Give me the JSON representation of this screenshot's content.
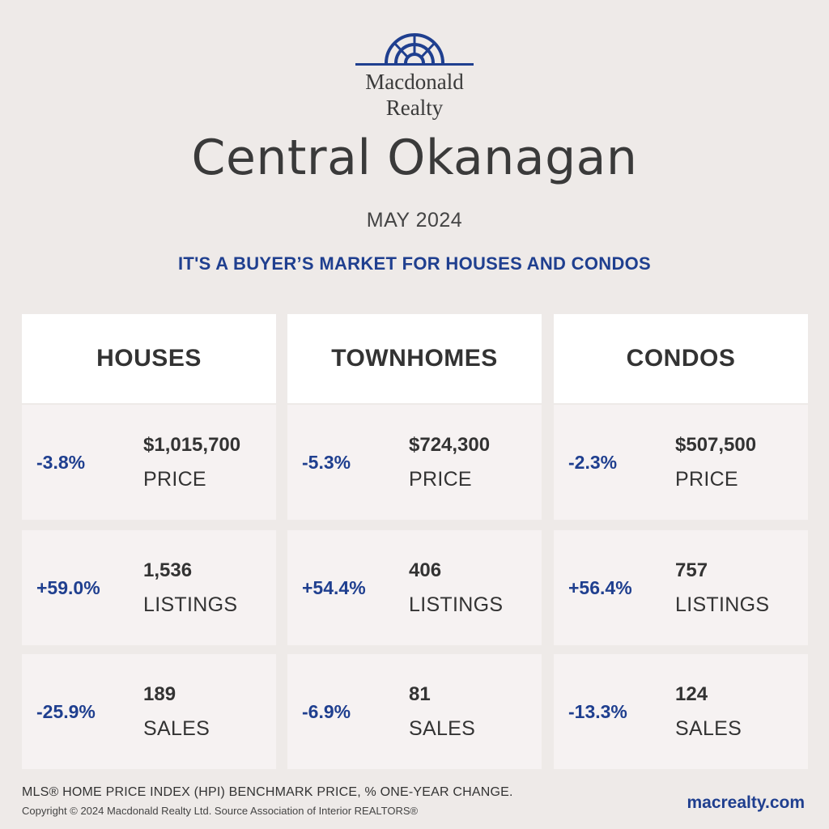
{
  "brand": {
    "name_line1": "Macdonald",
    "name_line2": "Realty",
    "logo_color": "#1f3f8f"
  },
  "region": "Central Okanagan",
  "month": "MAY 2024",
  "headline": "IT'S A BUYER’S MARKET FOR HOUSES AND CONDOS",
  "colors": {
    "accent": "#1f3f8f",
    "background": "#eeeae8",
    "card": "#f6f2f2",
    "header": "#ffffff"
  },
  "columns": [
    {
      "title": "HOUSES",
      "stats": [
        {
          "change": "-3.8%",
          "value": "$1,015,700",
          "label": "PRICE"
        },
        {
          "change": "+59.0%",
          "value": "1,536",
          "label": "LISTINGS"
        },
        {
          "change": "-25.9%",
          "value": "189",
          "label": "SALES"
        }
      ]
    },
    {
      "title": "TOWNHOMES",
      "stats": [
        {
          "change": "-5.3%",
          "value": "$724,300",
          "label": "PRICE"
        },
        {
          "change": "+54.4%",
          "value": "406",
          "label": "LISTINGS"
        },
        {
          "change": "-6.9%",
          "value": "81",
          "label": "SALES"
        }
      ]
    },
    {
      "title": "CONDOS",
      "stats": [
        {
          "change": "-2.3%",
          "value": "$507,500",
          "label": "PRICE"
        },
        {
          "change": "+56.4%",
          "value": "757",
          "label": "LISTINGS"
        },
        {
          "change": "-13.3%",
          "value": "124",
          "label": "SALES"
        }
      ]
    }
  ],
  "footer": {
    "note": "MLS® HOME PRICE INDEX (HPI) BENCHMARK PRICE, % ONE-YEAR CHANGE.",
    "copyright": "Copyright © 2024 Macdonald Realty Ltd. Source Association of Interior REALTORS®",
    "website": "macrealty.com"
  }
}
